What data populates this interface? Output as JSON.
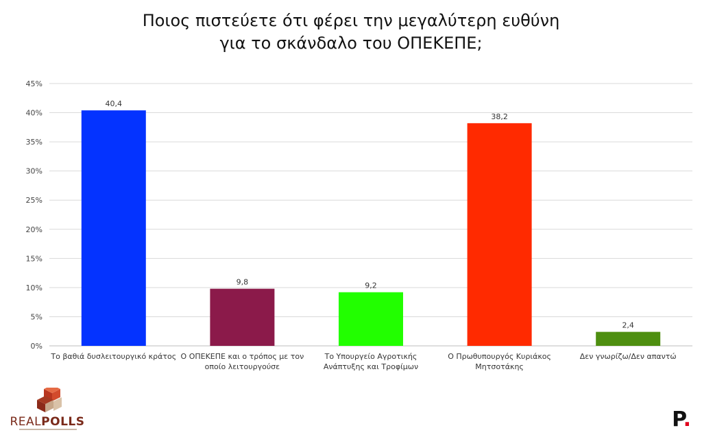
{
  "title_lines": [
    "Ποιος πιστεύετε ότι φέρει την μεγαλύτερη ευθύνη",
    "για το σκάνδαλο του ΟΠΕΚΕΠΕ;"
  ],
  "chart_data": {
    "type": "bar",
    "title": "Ποιος πιστεύετε ότι φέρει την μεγαλύτερη ευθύνη για το σκάνδαλο του ΟΠΕΚΕΠΕ;",
    "categories": [
      [
        "Το βαθιά δυσλειτουργικό κράτος"
      ],
      [
        "Ο ΟΠΕΚΕΠΕ και ο τρόπος με τον",
        "οποίο λειτουργούσε"
      ],
      [
        "Το Υπουργείο Αγροτικής",
        "Ανάπτυξης και Τροφίμων"
      ],
      [
        "Ο Πρωθυπουργός Κυριάκος",
        "Μητσοτάκης"
      ],
      [
        "Δεν γνωρίζω/Δεν απαντώ"
      ]
    ],
    "values": [
      40.4,
      9.8,
      9.2,
      38.2,
      2.4
    ],
    "value_labels": [
      "40,4",
      "9,8",
      "9,2",
      "38,2",
      "2,4"
    ],
    "colors": [
      "#0433ff",
      "#8b1a4a",
      "#22ff00",
      "#ff2a00",
      "#4e8f10"
    ],
    "ylim": [
      0,
      45
    ],
    "y_ticks": [
      0,
      5,
      10,
      15,
      20,
      25,
      30,
      35,
      40,
      45
    ],
    "y_tick_labels": [
      "0%",
      "5%",
      "10%",
      "15%",
      "20%",
      "25%",
      "30%",
      "35%",
      "40%",
      "45%"
    ],
    "grid": true,
    "legend": "none",
    "xlabel": "",
    "ylabel": ""
  },
  "logos": {
    "left_text_light": "REAL",
    "left_text_bold": "POLLS",
    "right_text": "P",
    "right_dot": "."
  }
}
